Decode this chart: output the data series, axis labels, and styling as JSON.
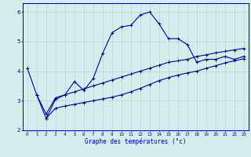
{
  "xlabel": "Graphe des températures (°c)",
  "bg_color": "#d4eeee",
  "grid_color": "#b8d4d4",
  "line_color": "#0000aa",
  "spine_color": "#0000aa",
  "xlim": [
    -0.5,
    23.5
  ],
  "ylim": [
    2.0,
    6.3
  ],
  "xticks": [
    0,
    1,
    2,
    3,
    4,
    5,
    6,
    7,
    8,
    9,
    10,
    11,
    12,
    13,
    14,
    15,
    16,
    17,
    18,
    19,
    20,
    21,
    22,
    23
  ],
  "yticks": [
    2,
    3,
    4,
    5,
    6
  ],
  "curve1_x": [
    0,
    1,
    2,
    3,
    4,
    5,
    6,
    7,
    8,
    9,
    10,
    11,
    12,
    13,
    14,
    15,
    16,
    17,
    18,
    19,
    20,
    21,
    22,
    23
  ],
  "curve1_y": [
    4.1,
    3.2,
    2.4,
    3.05,
    3.2,
    3.65,
    3.35,
    3.75,
    4.6,
    5.3,
    5.5,
    5.55,
    5.9,
    6.0,
    5.6,
    5.1,
    5.1,
    4.9,
    4.3,
    4.4,
    4.4,
    4.5,
    4.4,
    4.5
  ],
  "curve2_x": [
    1,
    2,
    3,
    4,
    5,
    6,
    7,
    8,
    9,
    10,
    11,
    12,
    13,
    14,
    15,
    16,
    17,
    18,
    19,
    20,
    21,
    22,
    23
  ],
  "curve2_y": [
    3.2,
    2.55,
    3.1,
    3.2,
    3.3,
    3.4,
    3.5,
    3.6,
    3.7,
    3.8,
    3.9,
    4.0,
    4.1,
    4.2,
    4.3,
    4.35,
    4.4,
    4.5,
    4.55,
    4.62,
    4.67,
    4.72,
    4.77
  ],
  "curve3_x": [
    2,
    3,
    4,
    5,
    6,
    7,
    8,
    9,
    10,
    11,
    12,
    13,
    14,
    15,
    16,
    17,
    18,
    19,
    20,
    21,
    22,
    23
  ],
  "curve3_y": [
    2.4,
    2.75,
    2.82,
    2.88,
    2.94,
    3.0,
    3.06,
    3.12,
    3.2,
    3.3,
    3.42,
    3.55,
    3.68,
    3.78,
    3.87,
    3.94,
    4.0,
    4.1,
    4.18,
    4.28,
    4.35,
    4.42
  ]
}
